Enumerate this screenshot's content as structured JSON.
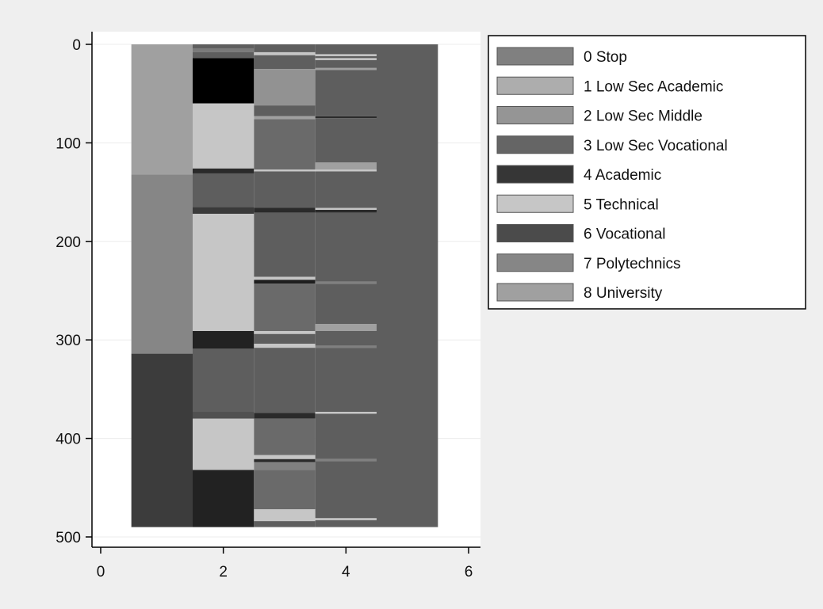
{
  "chart_data": {
    "type": "heatmap",
    "title": "",
    "xlabel": "",
    "ylabel": "",
    "xlim": [
      -0.2,
      6.2
    ],
    "ylim": [
      -10,
      510
    ],
    "y_inverted": true,
    "xticks": [
      0,
      2,
      4,
      6
    ],
    "yticks": [
      0,
      100,
      200,
      300,
      400,
      500
    ],
    "xtick_labels": [
      "0",
      "2",
      "4",
      "6"
    ],
    "ytick_labels": [
      "0",
      "100",
      "200",
      "300",
      "400",
      "500"
    ],
    "grid": true,
    "legend_position": "right",
    "categories": [
      {
        "code": 0,
        "label": "0 Stop",
        "color": "#808080"
      },
      {
        "code": 1,
        "label": "1 Low Sec Academic",
        "color": "#adadad"
      },
      {
        "code": 2,
        "label": "2 Low Sec Middle",
        "color": "#959595"
      },
      {
        "code": 3,
        "label": "3 Low Sec Vocational",
        "color": "#656565"
      },
      {
        "code": 4,
        "label": "4 Academic",
        "color": "#363636"
      },
      {
        "code": 5,
        "label": "5 Technical",
        "color": "#c6c6c6"
      },
      {
        "code": 6,
        "label": "6 Vocational",
        "color": "#4b4b4b"
      },
      {
        "code": 7,
        "label": "7 Polytechnics",
        "color": "#868686"
      },
      {
        "code": 8,
        "label": "8 University",
        "color": "#a0a0a0"
      }
    ],
    "segments": [
      {
        "x": 1,
        "y0": 0,
        "y1": 132,
        "color": "#a0a0a0"
      },
      {
        "x": 1,
        "y0": 132,
        "y1": 314,
        "color": "#868686"
      },
      {
        "x": 1,
        "y0": 314,
        "y1": 490,
        "color": "#3c3c3c"
      },
      {
        "x": 2,
        "y0": 0,
        "y1": 4,
        "color": "#5e5e5e"
      },
      {
        "x": 2,
        "y0": 4,
        "y1": 8,
        "color": "#7a7a7a"
      },
      {
        "x": 2,
        "y0": 8,
        "y1": 14,
        "color": "#5e5e5e"
      },
      {
        "x": 2,
        "y0": 14,
        "y1": 60,
        "color": "#000000"
      },
      {
        "x": 2,
        "y0": 60,
        "y1": 126,
        "color": "#c6c6c6"
      },
      {
        "x": 2,
        "y0": 126,
        "y1": 131,
        "color": "#2a2a2a"
      },
      {
        "x": 2,
        "y0": 131,
        "y1": 165,
        "color": "#5e5e5e"
      },
      {
        "x": 2,
        "y0": 165,
        "y1": 172,
        "color": "#3a3a3a"
      },
      {
        "x": 2,
        "y0": 172,
        "y1": 291,
        "color": "#c6c6c6"
      },
      {
        "x": 2,
        "y0": 291,
        "y1": 309,
        "color": "#222222"
      },
      {
        "x": 2,
        "y0": 309,
        "y1": 373,
        "color": "#5e5e5e"
      },
      {
        "x": 2,
        "y0": 373,
        "y1": 380,
        "color": "#505050"
      },
      {
        "x": 2,
        "y0": 380,
        "y1": 432,
        "color": "#c6c6c6"
      },
      {
        "x": 2,
        "y0": 432,
        "y1": 490,
        "color": "#222222"
      },
      {
        "x": 3,
        "y0": 0,
        "y1": 8,
        "color": "#5e5e5e"
      },
      {
        "x": 3,
        "y0": 8,
        "y1": 11,
        "color": "#c6c6c6"
      },
      {
        "x": 3,
        "y0": 11,
        "y1": 25,
        "color": "#5e5e5e"
      },
      {
        "x": 3,
        "y0": 25,
        "y1": 62,
        "color": "#929292"
      },
      {
        "x": 3,
        "y0": 62,
        "y1": 73,
        "color": "#5e5e5e"
      },
      {
        "x": 3,
        "y0": 73,
        "y1": 76,
        "color": "#a0a0a0"
      },
      {
        "x": 3,
        "y0": 76,
        "y1": 127,
        "color": "#6a6a6a"
      },
      {
        "x": 3,
        "y0": 127,
        "y1": 129,
        "color": "#c6c6c6"
      },
      {
        "x": 3,
        "y0": 129,
        "y1": 166,
        "color": "#5e5e5e"
      },
      {
        "x": 3,
        "y0": 166,
        "y1": 171,
        "color": "#2a2a2a"
      },
      {
        "x": 3,
        "y0": 171,
        "y1": 236,
        "color": "#5e5e5e"
      },
      {
        "x": 3,
        "y0": 236,
        "y1": 239,
        "color": "#c6c6c6"
      },
      {
        "x": 3,
        "y0": 239,
        "y1": 243,
        "color": "#1e1e1e"
      },
      {
        "x": 3,
        "y0": 243,
        "y1": 291,
        "color": "#6a6a6a"
      },
      {
        "x": 3,
        "y0": 291,
        "y1": 294,
        "color": "#c6c6c6"
      },
      {
        "x": 3,
        "y0": 294,
        "y1": 304,
        "color": "#5e5e5e"
      },
      {
        "x": 3,
        "y0": 304,
        "y1": 308,
        "color": "#c6c6c6"
      },
      {
        "x": 3,
        "y0": 308,
        "y1": 374,
        "color": "#5e5e5e"
      },
      {
        "x": 3,
        "y0": 374,
        "y1": 380,
        "color": "#2a2a2a"
      },
      {
        "x": 3,
        "y0": 380,
        "y1": 417,
        "color": "#6a6a6a"
      },
      {
        "x": 3,
        "y0": 417,
        "y1": 421,
        "color": "#c6c6c6"
      },
      {
        "x": 3,
        "y0": 421,
        "y1": 424,
        "color": "#2a2a2a"
      },
      {
        "x": 3,
        "y0": 424,
        "y1": 432,
        "color": "#808080"
      },
      {
        "x": 3,
        "y0": 432,
        "y1": 472,
        "color": "#6a6a6a"
      },
      {
        "x": 3,
        "y0": 472,
        "y1": 484,
        "color": "#c6c6c6"
      },
      {
        "x": 3,
        "y0": 484,
        "y1": 490,
        "color": "#5e5e5e"
      },
      {
        "x": 4,
        "y0": 0,
        "y1": 10,
        "color": "#5e5e5e"
      },
      {
        "x": 4,
        "y0": 10,
        "y1": 12,
        "color": "#c6c6c6"
      },
      {
        "x": 4,
        "y0": 12,
        "y1": 14,
        "color": "#5e5e5e"
      },
      {
        "x": 4,
        "y0": 14,
        "y1": 16,
        "color": "#c6c6c6"
      },
      {
        "x": 4,
        "y0": 16,
        "y1": 24,
        "color": "#5e5e5e"
      },
      {
        "x": 4,
        "y0": 24,
        "y1": 26,
        "color": "#a0a0a0"
      },
      {
        "x": 4,
        "y0": 26,
        "y1": 73,
        "color": "#5e5e5e"
      },
      {
        "x": 4,
        "y0": 73,
        "y1": 75,
        "color": "#2a2a2a"
      },
      {
        "x": 4,
        "y0": 75,
        "y1": 120,
        "color": "#5e5e5e"
      },
      {
        "x": 4,
        "y0": 120,
        "y1": 127,
        "color": "#a0a0a0"
      },
      {
        "x": 4,
        "y0": 127,
        "y1": 129,
        "color": "#c6c6c6"
      },
      {
        "x": 4,
        "y0": 129,
        "y1": 166,
        "color": "#5e5e5e"
      },
      {
        "x": 4,
        "y0": 166,
        "y1": 168,
        "color": "#c6c6c6"
      },
      {
        "x": 4,
        "y0": 168,
        "y1": 171,
        "color": "#2a2a2a"
      },
      {
        "x": 4,
        "y0": 171,
        "y1": 241,
        "color": "#5e5e5e"
      },
      {
        "x": 4,
        "y0": 241,
        "y1": 243,
        "color": "#808080"
      },
      {
        "x": 4,
        "y0": 243,
        "y1": 284,
        "color": "#5e5e5e"
      },
      {
        "x": 4,
        "y0": 284,
        "y1": 291,
        "color": "#a0a0a0"
      },
      {
        "x": 4,
        "y0": 291,
        "y1": 306,
        "color": "#5e5e5e"
      },
      {
        "x": 4,
        "y0": 306,
        "y1": 308,
        "color": "#808080"
      },
      {
        "x": 4,
        "y0": 308,
        "y1": 373,
        "color": "#5e5e5e"
      },
      {
        "x": 4,
        "y0": 373,
        "y1": 375,
        "color": "#c6c6c6"
      },
      {
        "x": 4,
        "y0": 375,
        "y1": 421,
        "color": "#5e5e5e"
      },
      {
        "x": 4,
        "y0": 421,
        "y1": 423,
        "color": "#808080"
      },
      {
        "x": 4,
        "y0": 423,
        "y1": 481,
        "color": "#5e5e5e"
      },
      {
        "x": 4,
        "y0": 481,
        "y1": 483,
        "color": "#c6c6c6"
      },
      {
        "x": 4,
        "y0": 483,
        "y1": 490,
        "color": "#5e5e5e"
      },
      {
        "x": 5,
        "y0": 0,
        "y1": 490,
        "color": "#5e5e5e"
      }
    ]
  }
}
